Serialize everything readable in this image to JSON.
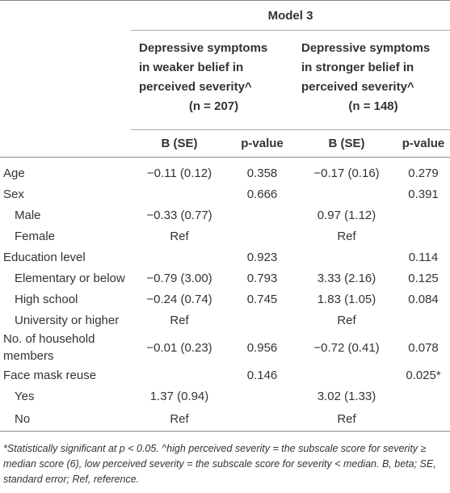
{
  "table": {
    "model": "Model 3",
    "groups": [
      {
        "title_lines": [
          "Depressive symptoms",
          "in weaker belief in",
          "perceived severity^"
        ],
        "n": "(n = 207)"
      },
      {
        "title_lines": [
          "Depressive symptoms",
          "in stronger belief in",
          "perceived severity^"
        ],
        "n": "(n = 148)"
      }
    ],
    "columns": [
      "B (SE)",
      "p-value",
      "B (SE)",
      "p-value"
    ],
    "rows": [
      {
        "cells": [
          "Age",
          "−0.11 (0.12)",
          "0.358",
          "−0.17 (0.16)",
          "0.279"
        ],
        "indent": false
      },
      {
        "cells": [
          "Sex",
          null,
          "0.666",
          null,
          "0.391"
        ],
        "indent": false
      },
      {
        "cells": [
          "Male",
          "−0.33 (0.77)",
          null,
          "0.97 (1.12)",
          null
        ],
        "indent": true
      },
      {
        "cells": [
          "Female",
          "Ref",
          null,
          "Ref",
          null
        ],
        "indent": true
      },
      {
        "cells": [
          "Education level",
          null,
          "0.923",
          null,
          "0.114"
        ],
        "indent": false
      },
      {
        "cells": [
          "Elementary or below",
          "−0.79 (3.00)",
          "0.793",
          "3.33 (2.16)",
          "0.125"
        ],
        "indent": true
      },
      {
        "cells": [
          "High school",
          "−0.24 (0.74)",
          "0.745",
          "1.83 (1.05)",
          "0.084"
        ],
        "indent": true
      },
      {
        "cells": [
          "University or higher",
          "Ref",
          null,
          "Ref",
          null
        ],
        "indent": true
      },
      {
        "cells": [
          "No. of household members",
          "−0.01 (0.23)",
          "0.956",
          "−0.72 (0.41)",
          "0.078"
        ],
        "indent": false
      },
      {
        "cells": [
          "Face mask reuse",
          null,
          "0.146",
          null,
          "0.025*"
        ],
        "indent": false
      },
      {
        "cells": [
          "Yes",
          "1.37 (0.94)",
          null,
          "3.02 (1.33)",
          null
        ],
        "indent": true
      },
      {
        "cells": [
          "No",
          "Ref",
          null,
          "Ref",
          null
        ],
        "indent": true
      }
    ],
    "footnote": "*Statistically significant at p < 0.05. ^high perceived severity = the subscale score for severity ≥ median score (6), low perceived severity = the subscale score for severity < median. B, beta; SE, standard error; Ref, reference."
  }
}
